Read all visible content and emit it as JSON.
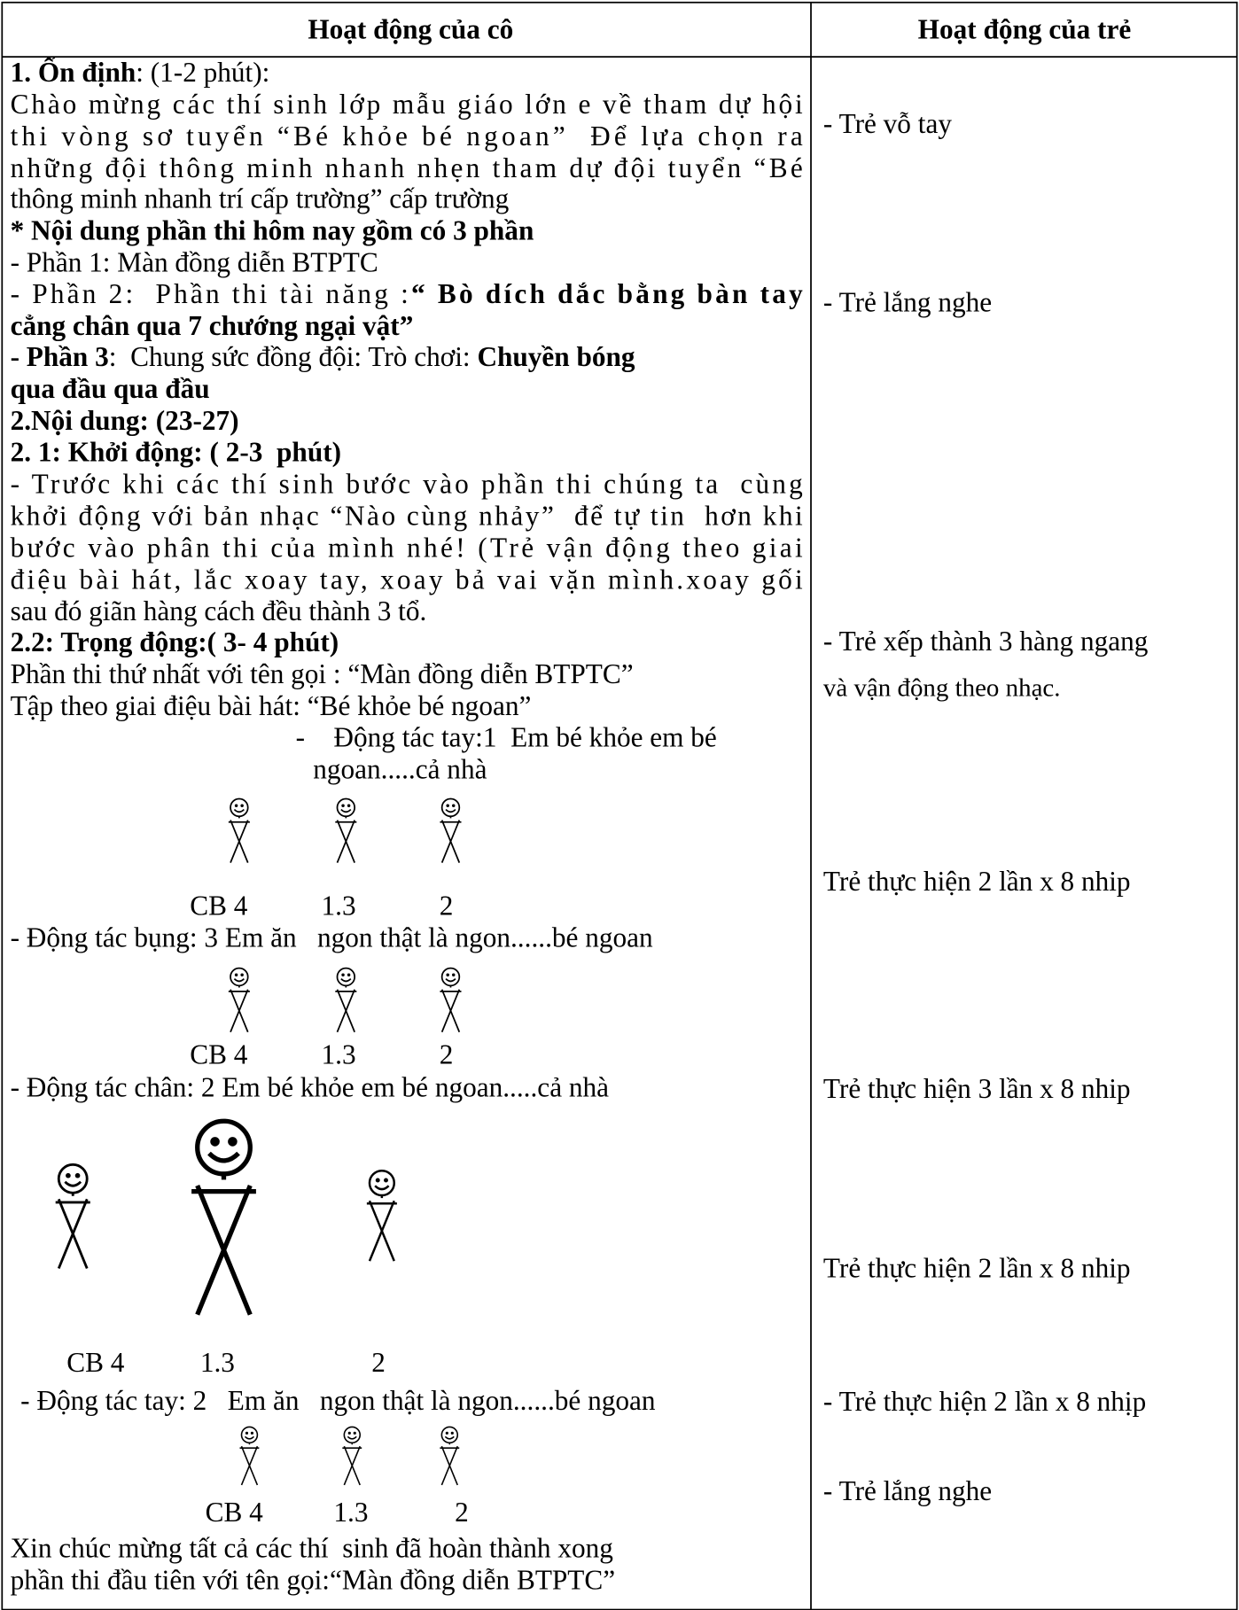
{
  "table": {
    "header": [
      "Hoạt động của cô",
      "Hoạt động của trẻ"
    ],
    "left": [
      [
        "1. Ổn định",
        ": (1-2 phút):"
      ],
      [
        "Chào mừng các thí sinh lớp mẫu giáo lớn e về tham dự hội"
      ],
      [
        "thi vòng sơ tuyển “Bé khỏe bé ngoan”  Để lựa chọn ra"
      ],
      [
        "những đội thông minh nhanh nhẹn tham dự đội tuyển “Bé"
      ],
      [
        "thông minh nhanh trí cấp trường” cấp trường"
      ],
      [
        "* Nội dung phần thi hôm nay gồm có 3 phần"
      ],
      [
        "- Phần 1: Màn đồng diễn BTPTC"
      ],
      [
        "- Phần 2:  Phần thi tài năng :",
        "“ Bò dích dắc bằng bàn tay"
      ],
      [
        "cẳng chân qua 7 chướng ngại vật”"
      ],
      [
        "- Phần 3",
        ":  Chung sức đồng đội: Trò chơi: ",
        "Chuyền bóng"
      ],
      [
        "qua đầu qua đầu"
      ],
      [
        "2.Nội dung: (23-27)"
      ],
      [
        "2. 1: Khởi động: ( 2-3  phút)"
      ],
      [
        "- Trước khi các thí sinh bước vào phần thi chúng ta  cùng"
      ],
      [
        "khởi động với bản nhạc “Nào cùng nhảy”  để tự tin  hơn khi"
      ],
      [
        "bước vào phân thi của mình nhé! (Trẻ vận động theo giai"
      ],
      [
        "điệu bài hát, lắc xoay tay, xoay bả vai vặn mình.xoay gối"
      ],
      [
        "sau đó giãn hàng cách đều thành 3 tổ."
      ],
      [
        "2.2: Trọng động:( 3- 4 phút)"
      ],
      [
        "Phần thi thứ nhất với tên gọi : “Màn đồng diễn BTPTC”"
      ],
      [
        "Tập theo giai điệu bài hát: “Bé khỏe bé ngoan”"
      ],
      [
        "-",
        "Động tác tay:1  Em bé khỏe em bé"
      ],
      [
        "ngoan.....cả nhà"
      ],
      [
        "CB 4",
        "1.3",
        "2"
      ],
      [
        "- Động tác bụng: 3 Em ăn   ngon thật là ngon......bé ngoan"
      ],
      [
        "CB 4",
        "1.3",
        "2"
      ],
      [
        "- Động tác chân: 2 Em bé khỏe em bé ngoan.....cả nhà"
      ],
      [
        "CB 4",
        "1.3",
        "2"
      ],
      [
        "- Động tác tay: 2   Em ăn   ngon thật là ngon......bé ngoan"
      ],
      [
        "CB 4",
        "1.3",
        "2"
      ],
      [
        "Xin chúc mừng tất cả các thí  sinh đã hoàn thành xong"
      ],
      [
        "phần thi đầu tiên với tên gọi:“Màn đồng diễn BTPTC”"
      ]
    ],
    "right": [
      "- Trẻ vỗ tay",
      "- Trẻ lắng nghe",
      "- Trẻ xếp thành 3 hàng ngang",
      "và vận động theo nhạc.",
      "Trẻ thực hiện 2 lần x 8 nhip",
      "Trẻ thực hiện 3 lần x 8 nhip",
      "Trẻ thực hiện 2 lần x 8 nhip",
      "- Trẻ thực hiện 2 lần x 8 nhịp",
      "- Trẻ lắng nghe"
    ]
  }
}
